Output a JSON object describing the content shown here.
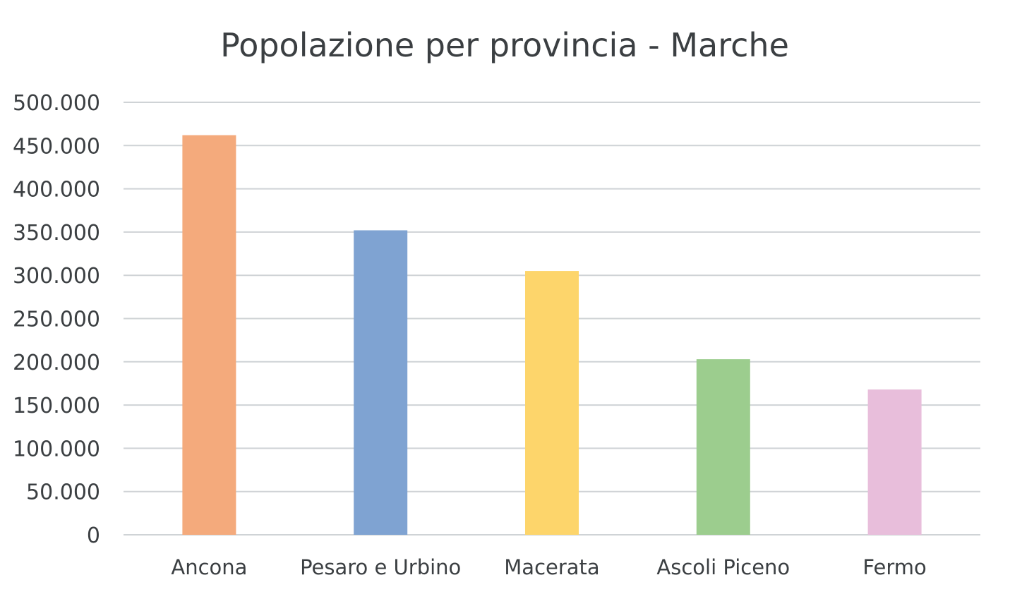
{
  "chart_data": {
    "type": "bar",
    "title": "Popolazione per provincia - Marche",
    "xlabel": "",
    "ylabel": "",
    "categories": [
      "Ancona",
      "Pesaro e Urbino",
      "Macerata",
      "Ascoli Piceno",
      "Fermo"
    ],
    "values": [
      462000,
      352000,
      305000,
      203000,
      168000
    ],
    "colors": [
      "#f4aa7c",
      "#7fa3d2",
      "#fdd56b",
      "#9ccd8e",
      "#e8bedb"
    ],
    "ylim": [
      0,
      500000
    ],
    "yticks": [
      0,
      50000,
      100000,
      150000,
      200000,
      250000,
      300000,
      350000,
      400000,
      450000,
      500000
    ],
    "ytick_labels": [
      "0",
      "50.000",
      "100.000",
      "150.000",
      "200.000",
      "250.000",
      "300.000",
      "350.000",
      "400.000",
      "450.000",
      "500.000"
    ],
    "grid": true,
    "legend": "none"
  }
}
